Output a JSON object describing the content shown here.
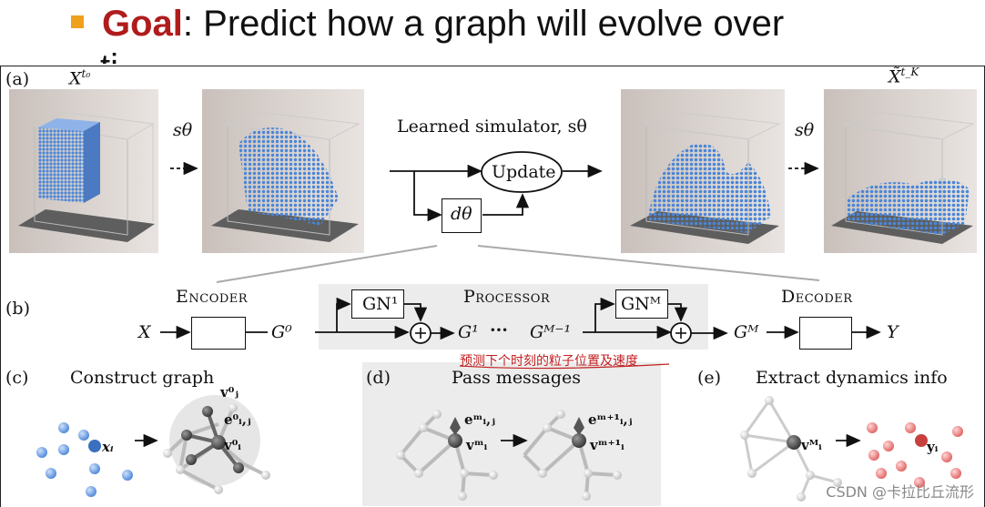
{
  "slide": {
    "bullet_color": "#f0a11c",
    "goal_word": "Goal",
    "goal_color": "#b01c1c",
    "title_rest": ": Predict how a graph will evolve over",
    "title_clipped": "ti"
  },
  "figure": {
    "panel_a": {
      "label": "(a)",
      "x_start": "X",
      "x_start_sup": "t₀",
      "x_end": "X̃",
      "x_end_sup": "t_K",
      "s_theta_left": "sθ",
      "s_theta_right": "sθ",
      "simulator_title": "Learned simulator, sθ",
      "update_label": "Update",
      "d_theta": "dθ"
    },
    "panel_b": {
      "label": "(b)",
      "encoder": "Encoder",
      "processor": "Processor",
      "decoder": "Decoder",
      "x_in": "X",
      "g0": "G⁰",
      "gn1": "GN¹",
      "g1": "G¹",
      "dots": "···",
      "gm_minus1": "Gᴹ⁻¹",
      "gnm": "GNᴹ",
      "gm": "Gᴹ",
      "y_out": "Y",
      "annotation": "预测下个时刻的粒子位置及速度"
    },
    "panel_c": {
      "label": "(c)",
      "title": "Construct graph",
      "xi": "xᵢ",
      "vj": "v⁰ⱼ",
      "eij": "e⁰ᵢ,ⱼ",
      "vi": "v⁰ᵢ"
    },
    "panel_d": {
      "label": "(d)",
      "title": "Pass messages",
      "eij_m": "eᵐᵢ,ⱼ",
      "vi_m": "vᵐᵢ",
      "eij_m1": "eᵐ⁺¹ᵢ,ⱼ",
      "vi_m1": "vᵐ⁺¹ᵢ"
    },
    "panel_e": {
      "label": "(e)",
      "title": "Extract dynamics info",
      "vi_M": "vᴹᵢ",
      "yi": "yᵢ"
    }
  },
  "watermark": "CSDN @卡拉比丘流形",
  "colors": {
    "particle_blue": "#4a86d8",
    "particle_red": "#e06060",
    "annotation_red": "#c21f1f"
  }
}
